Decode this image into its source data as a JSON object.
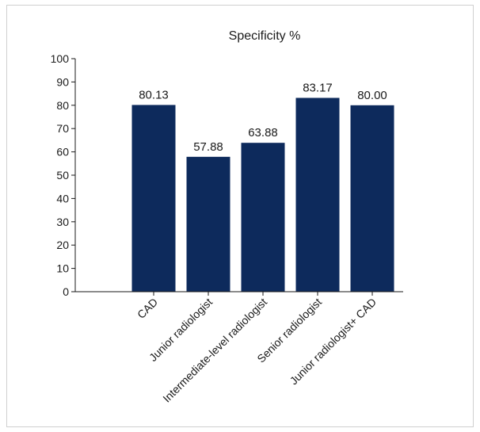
{
  "chart_data": {
    "type": "bar",
    "title": "Specificity %",
    "xlabel": "",
    "ylabel": "",
    "categories": [
      "CAD",
      "Junior radiologist",
      "Intermediate-level radiologist",
      "Senior radiologist",
      "Junior radiologist+ CAD"
    ],
    "values": [
      80.13,
      57.88,
      63.88,
      83.17,
      80.0
    ],
    "data_labels": [
      "80.13",
      "57.88",
      "63.88",
      "83.17",
      "80.00"
    ],
    "ylim": [
      0,
      100
    ],
    "yticks": [
      0,
      10,
      20,
      30,
      40,
      50,
      60,
      70,
      80,
      90,
      100
    ],
    "grid": false,
    "legend": "none",
    "bar_color": "#0d2a5c"
  }
}
